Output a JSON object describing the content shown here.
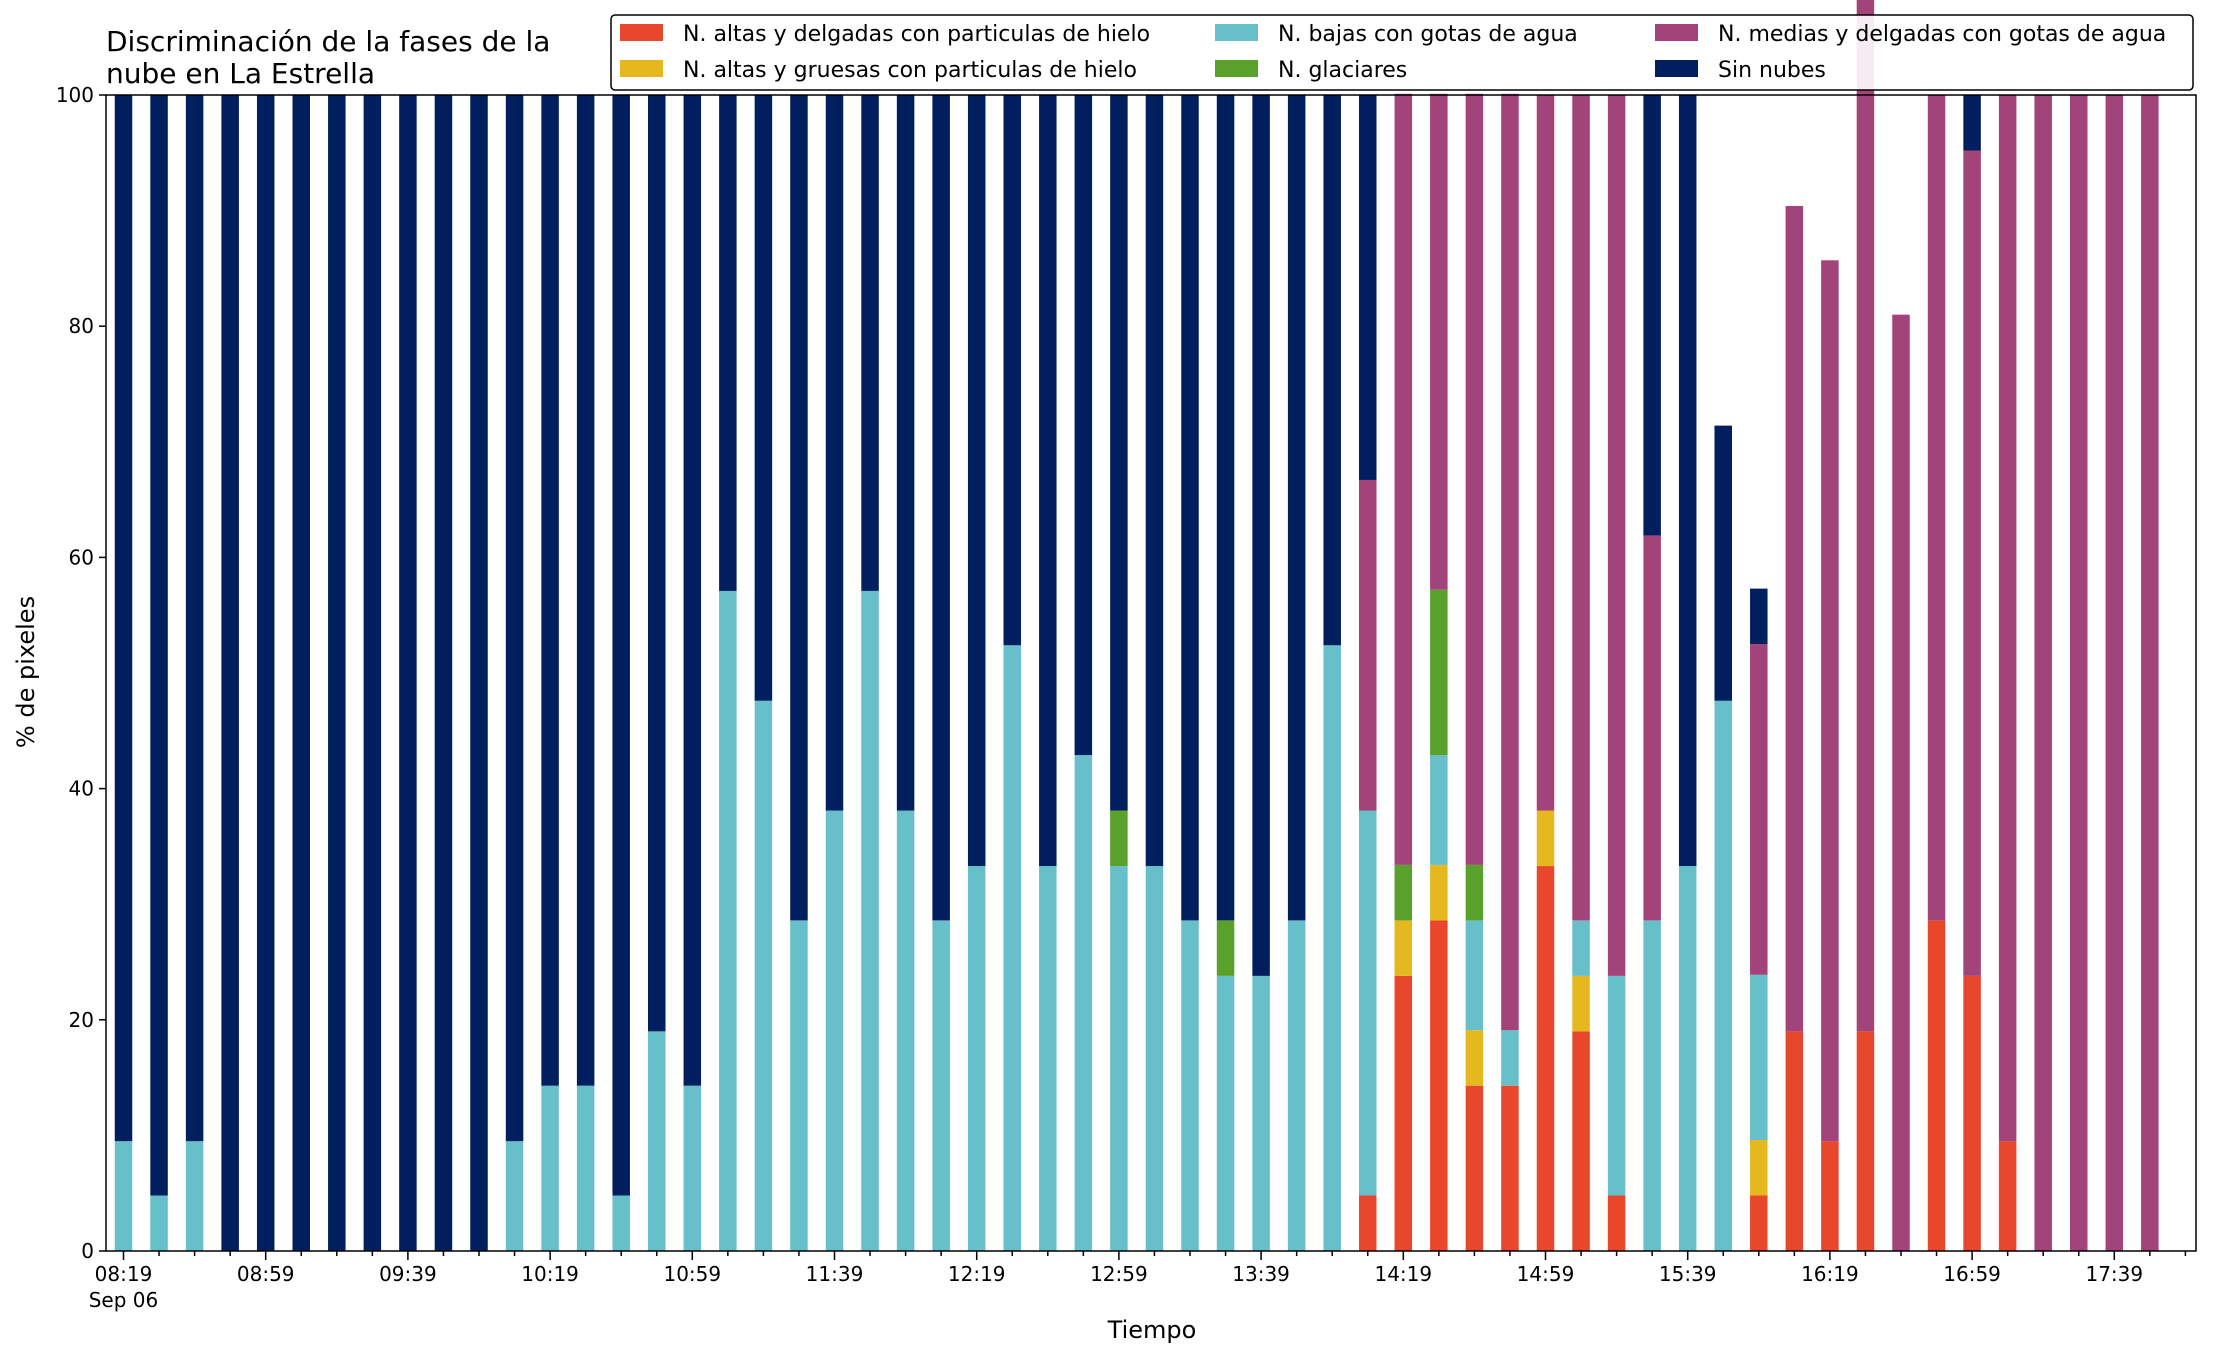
{
  "chart_data": {
    "type": "bar",
    "stacked": true,
    "title_lines": [
      "Discriminación de la fases de la",
      "nube en La Estrella"
    ],
    "xlabel": "Tiempo",
    "ylabel": "% de pixeles",
    "ylim": [
      0,
      100
    ],
    "yticks": [
      "0",
      "20",
      "40",
      "60",
      "80",
      "100"
    ],
    "xtick_labels": [
      "08:19",
      "08:59",
      "09:39",
      "10:19",
      "10:59",
      "11:39",
      "12:19",
      "12:59",
      "13:39",
      "14:19",
      "14:59",
      "15:39",
      "16:19",
      "16:59",
      "17:39"
    ],
    "xtick_sublabel": "Sep 06",
    "legend_position": "top-right",
    "grid": false,
    "categories": [
      "08:19",
      "08:29",
      "08:39",
      "08:49",
      "08:59",
      "09:09",
      "09:19",
      "09:29",
      "09:39",
      "09:49",
      "09:59",
      "10:09",
      "10:19",
      "10:29",
      "10:39",
      "10:49",
      "10:59",
      "11:09",
      "11:19",
      "11:29",
      "11:39",
      "11:49",
      "11:59",
      "12:09",
      "12:19",
      "12:29",
      "12:39",
      "12:49",
      "12:59",
      "13:09",
      "13:19",
      "13:29",
      "13:39",
      "13:49",
      "13:59",
      "14:09",
      "14:19",
      "14:29",
      "14:39",
      "14:49",
      "14:59",
      "15:09",
      "15:19",
      "15:29",
      "15:39",
      "15:49",
      "15:59",
      "16:09",
      "16:19",
      "16:29",
      "16:39",
      "16:49",
      "16:59",
      "17:09",
      "17:19",
      "17:29",
      "17:39",
      "17:49"
    ],
    "series": [
      {
        "name": "N. altas y delgadas con particulas de hielo",
        "color": "#e8472b",
        "values": [
          0,
          0,
          0,
          0,
          0,
          0,
          0,
          0,
          0,
          0,
          0,
          0,
          0,
          0,
          0,
          0,
          0,
          0,
          0,
          0,
          0,
          0,
          0,
          0,
          0,
          0,
          0,
          0,
          0,
          0,
          0,
          0,
          0,
          0,
          0,
          4.8,
          23.8,
          28.6,
          14.3,
          14.3,
          33.3,
          19.0,
          4.8,
          0,
          0,
          0,
          4.8,
          19.0,
          9.5,
          19.0,
          0,
          28.6,
          23.8,
          9.5,
          0,
          0,
          0,
          0
        ]
      },
      {
        "name": "N. altas y gruesas con particulas de hielo",
        "color": "#e6b820",
        "values": [
          0,
          0,
          0,
          0,
          0,
          0,
          0,
          0,
          0,
          0,
          0,
          0,
          0,
          0,
          0,
          0,
          0,
          0,
          0,
          0,
          0,
          0,
          0,
          0,
          0,
          0,
          0,
          0,
          0,
          0,
          0,
          0,
          0,
          0,
          0,
          0,
          4.8,
          4.8,
          4.8,
          0,
          4.8,
          4.8,
          0,
          0,
          0,
          0,
          4.8,
          0,
          0,
          0,
          0,
          0,
          0,
          0,
          0,
          0,
          0,
          0
        ]
      },
      {
        "name": "N. bajas con gotas de agua",
        "color": "#67bfca",
        "values": [
          9.5,
          4.8,
          9.5,
          0,
          0,
          0,
          0,
          0,
          0,
          0,
          0,
          9.5,
          14.3,
          14.3,
          4.8,
          19.0,
          14.3,
          57.1,
          47.6,
          28.6,
          38.1,
          57.1,
          38.1,
          28.6,
          33.3,
          52.4,
          33.3,
          42.9,
          33.3,
          33.3,
          28.6,
          23.8,
          23.8,
          28.6,
          52.4,
          33.3,
          0,
          9.5,
          9.5,
          4.8,
          0,
          4.8,
          19.0,
          28.6,
          33.3,
          47.6,
          14.3,
          0,
          0,
          0,
          0,
          0,
          0,
          0,
          0,
          0,
          0,
          0
        ]
      },
      {
        "name": "N. glaciares",
        "color": "#5aa12c",
        "values": [
          0,
          0,
          0,
          0,
          0,
          0,
          0,
          0,
          0,
          0,
          0,
          0,
          0,
          0,
          0,
          0,
          0,
          0,
          0,
          0,
          0,
          0,
          0,
          0,
          0,
          0,
          0,
          0,
          4.8,
          0,
          0,
          4.8,
          0,
          0,
          0,
          0,
          4.8,
          14.3,
          4.8,
          0,
          0,
          0,
          0,
          0,
          0,
          0,
          0,
          0,
          0,
          0,
          0,
          0,
          0,
          0,
          0,
          0,
          0,
          0
        ]
      },
      {
        "name": "N. medias y delgadas con gotas de agua",
        "color": "#a2437a",
        "values": [
          0,
          0,
          0,
          0,
          0,
          0,
          0,
          0,
          0,
          0,
          0,
          0,
          0,
          0,
          0,
          0,
          0,
          0,
          0,
          0,
          0,
          0,
          0,
          0,
          0,
          0,
          0,
          0,
          0,
          0,
          0,
          0,
          0,
          0,
          0,
          28.6,
          66.7,
          42.9,
          66.7,
          81.0,
          61.9,
          71.4,
          76.2,
          33.3,
          0,
          0,
          28.6,
          71.4,
          76.2,
          90.5,
          81.0,
          71.4,
          71.4,
          90.5,
          100,
          100,
          100,
          100
        ]
      },
      {
        "name": "Sin nubes",
        "color": "#011f5f",
        "values": [
          90.5,
          95.2,
          90.5,
          100,
          100,
          100,
          100,
          100,
          100,
          100,
          100,
          90.5,
          85.7,
          85.7,
          95.2,
          81.0,
          85.7,
          42.9,
          52.4,
          71.4,
          61.9,
          42.9,
          61.9,
          71.4,
          66.7,
          47.6,
          66.7,
          57.1,
          61.9,
          66.7,
          71.4,
          71.4,
          76.2,
          71.4,
          47.6,
          33.3,
          0,
          0,
          0,
          0,
          0,
          0,
          0,
          38.1,
          66.7,
          23.8,
          4.8,
          0,
          0,
          0,
          0,
          0,
          4.8,
          0,
          0,
          0,
          0,
          0
        ]
      }
    ]
  }
}
